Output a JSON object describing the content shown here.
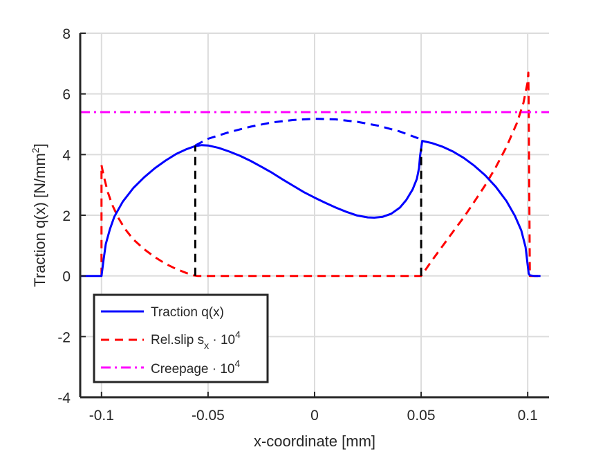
{
  "chart_data": {
    "type": "line",
    "title": "",
    "xlabel": "x-coordinate [mm]",
    "ylabel": {
      "main": "Traction q(x) [N/mm",
      "sup": "2",
      "tail": "]"
    },
    "xlim": [
      -0.11,
      0.11
    ],
    "ylim": [
      -4,
      8
    ],
    "xticks": [
      -0.1,
      -0.05,
      0,
      0.05,
      0.1
    ],
    "xtick_labels": [
      "-0.1",
      "-0.05",
      "0",
      "0.05",
      "0.1"
    ],
    "yticks": [
      -4,
      -2,
      0,
      2,
      4,
      6,
      8
    ],
    "ytick_labels": [
      "-4",
      "-2",
      "0",
      "2",
      "4",
      "6",
      "8"
    ],
    "grid": true,
    "legend_position": "bottom-left",
    "colors": {
      "traction": "#0000ff",
      "slip": "#ff0000",
      "creepage": "#ff00ff",
      "marker": "#000000",
      "grid": "#dcdcdc",
      "axis": "#262626"
    },
    "legend": [
      {
        "key": "traction",
        "text": "Traction q(x)",
        "sup": "",
        "dash": "solid"
      },
      {
        "key": "slip",
        "text": "Rel.slip s",
        "sub": "x",
        "mid": " · 10",
        "sup": "4",
        "dash": "dashed"
      },
      {
        "key": "creepage",
        "text": "Creepage · 10",
        "sup": "4",
        "dash": "dashdot"
      }
    ],
    "series": [
      {
        "name": "Traction q(x)",
        "key": "traction",
        "style": "solid",
        "points": [
          [
            -0.11,
            0
          ],
          [
            -0.1,
            0
          ],
          [
            -0.099,
            0.55
          ],
          [
            -0.098,
            1.05
          ],
          [
            -0.096,
            1.55
          ],
          [
            -0.094,
            1.95
          ],
          [
            -0.09,
            2.45
          ],
          [
            -0.085,
            2.9
          ],
          [
            -0.08,
            3.25
          ],
          [
            -0.075,
            3.55
          ],
          [
            -0.07,
            3.8
          ],
          [
            -0.065,
            4.02
          ],
          [
            -0.06,
            4.18
          ],
          [
            -0.056,
            4.28
          ],
          [
            -0.053,
            4.31
          ],
          [
            -0.05,
            4.3
          ],
          [
            -0.045,
            4.22
          ],
          [
            -0.04,
            4.1
          ],
          [
            -0.035,
            3.96
          ],
          [
            -0.03,
            3.79
          ],
          [
            -0.025,
            3.6
          ],
          [
            -0.02,
            3.4
          ],
          [
            -0.015,
            3.18
          ],
          [
            -0.01,
            2.97
          ],
          [
            -0.005,
            2.76
          ],
          [
            0,
            2.58
          ],
          [
            0.005,
            2.41
          ],
          [
            0.01,
            2.25
          ],
          [
            0.015,
            2.11
          ],
          [
            0.02,
            1.99
          ],
          [
            0.025,
            1.93
          ],
          [
            0.028,
            1.92
          ],
          [
            0.032,
            1.95
          ],
          [
            0.036,
            2.05
          ],
          [
            0.04,
            2.25
          ],
          [
            0.043,
            2.5
          ],
          [
            0.046,
            2.85
          ],
          [
            0.048,
            3.2
          ],
          [
            0.049,
            3.55
          ],
          [
            0.0495,
            3.95
          ],
          [
            0.05,
            4.2
          ],
          [
            0.0505,
            4.45
          ],
          [
            0.055,
            4.38
          ],
          [
            0.06,
            4.26
          ],
          [
            0.065,
            4.1
          ],
          [
            0.07,
            3.89
          ],
          [
            0.075,
            3.63
          ],
          [
            0.08,
            3.32
          ],
          [
            0.085,
            2.94
          ],
          [
            0.09,
            2.47
          ],
          [
            0.094,
            1.98
          ],
          [
            0.097,
            1.5
          ],
          [
            0.099,
            0.95
          ],
          [
            0.1,
            0.35
          ],
          [
            0.1005,
            0.08
          ],
          [
            0.101,
            0.02
          ],
          [
            0.103,
            0
          ],
          [
            0.106,
            0
          ]
        ]
      },
      {
        "name": "",
        "key": "traction",
        "style": "dashed",
        "points": [
          [
            -0.056,
            4.3
          ],
          [
            -0.05,
            4.52
          ],
          [
            -0.04,
            4.74
          ],
          [
            -0.03,
            4.92
          ],
          [
            -0.02,
            5.06
          ],
          [
            -0.01,
            5.14
          ],
          [
            0,
            5.18
          ],
          [
            0.01,
            5.16
          ],
          [
            0.02,
            5.08
          ],
          [
            0.03,
            4.95
          ],
          [
            0.04,
            4.76
          ],
          [
            0.05,
            4.5
          ]
        ]
      },
      {
        "name": "Rel.slip s_x · 10^4",
        "key": "slip",
        "style": "dashed",
        "points": [
          [
            -0.1,
            0
          ],
          [
            -0.1,
            3.65
          ],
          [
            -0.099,
            3.3
          ],
          [
            -0.097,
            2.75
          ],
          [
            -0.095,
            2.35
          ],
          [
            -0.092,
            1.9
          ],
          [
            -0.089,
            1.55
          ],
          [
            -0.085,
            1.2
          ],
          [
            -0.08,
            0.88
          ],
          [
            -0.075,
            0.62
          ],
          [
            -0.07,
            0.4
          ],
          [
            -0.065,
            0.23
          ],
          [
            -0.06,
            0.09
          ],
          [
            -0.057,
            0.02
          ],
          [
            -0.055,
            0
          ],
          [
            0.05,
            0
          ],
          [
            0.055,
            0.5
          ],
          [
            0.06,
            0.98
          ],
          [
            0.065,
            1.46
          ],
          [
            0.07,
            1.93
          ],
          [
            0.075,
            2.45
          ],
          [
            0.08,
            2.98
          ],
          [
            0.085,
            3.58
          ],
          [
            0.09,
            4.25
          ],
          [
            0.095,
            5.05
          ],
          [
            0.098,
            5.7
          ],
          [
            0.1,
            6.4
          ],
          [
            0.1003,
            6.7
          ],
          [
            0.1005,
            5.5
          ],
          [
            0.101,
            0
          ],
          [
            0.107,
            0
          ]
        ]
      },
      {
        "name": "Creepage · 10^4",
        "key": "creepage",
        "style": "dashdot",
        "points": [
          [
            -0.11,
            5.4
          ],
          [
            0.11,
            5.4
          ]
        ]
      },
      {
        "name": "",
        "key": "marker",
        "style": "dashed",
        "points": [
          [
            -0.056,
            0
          ],
          [
            -0.056,
            4.3
          ]
        ]
      },
      {
        "name": "",
        "key": "marker",
        "style": "dashed",
        "points": [
          [
            0.05,
            0
          ],
          [
            0.05,
            4.2
          ]
        ]
      }
    ]
  }
}
